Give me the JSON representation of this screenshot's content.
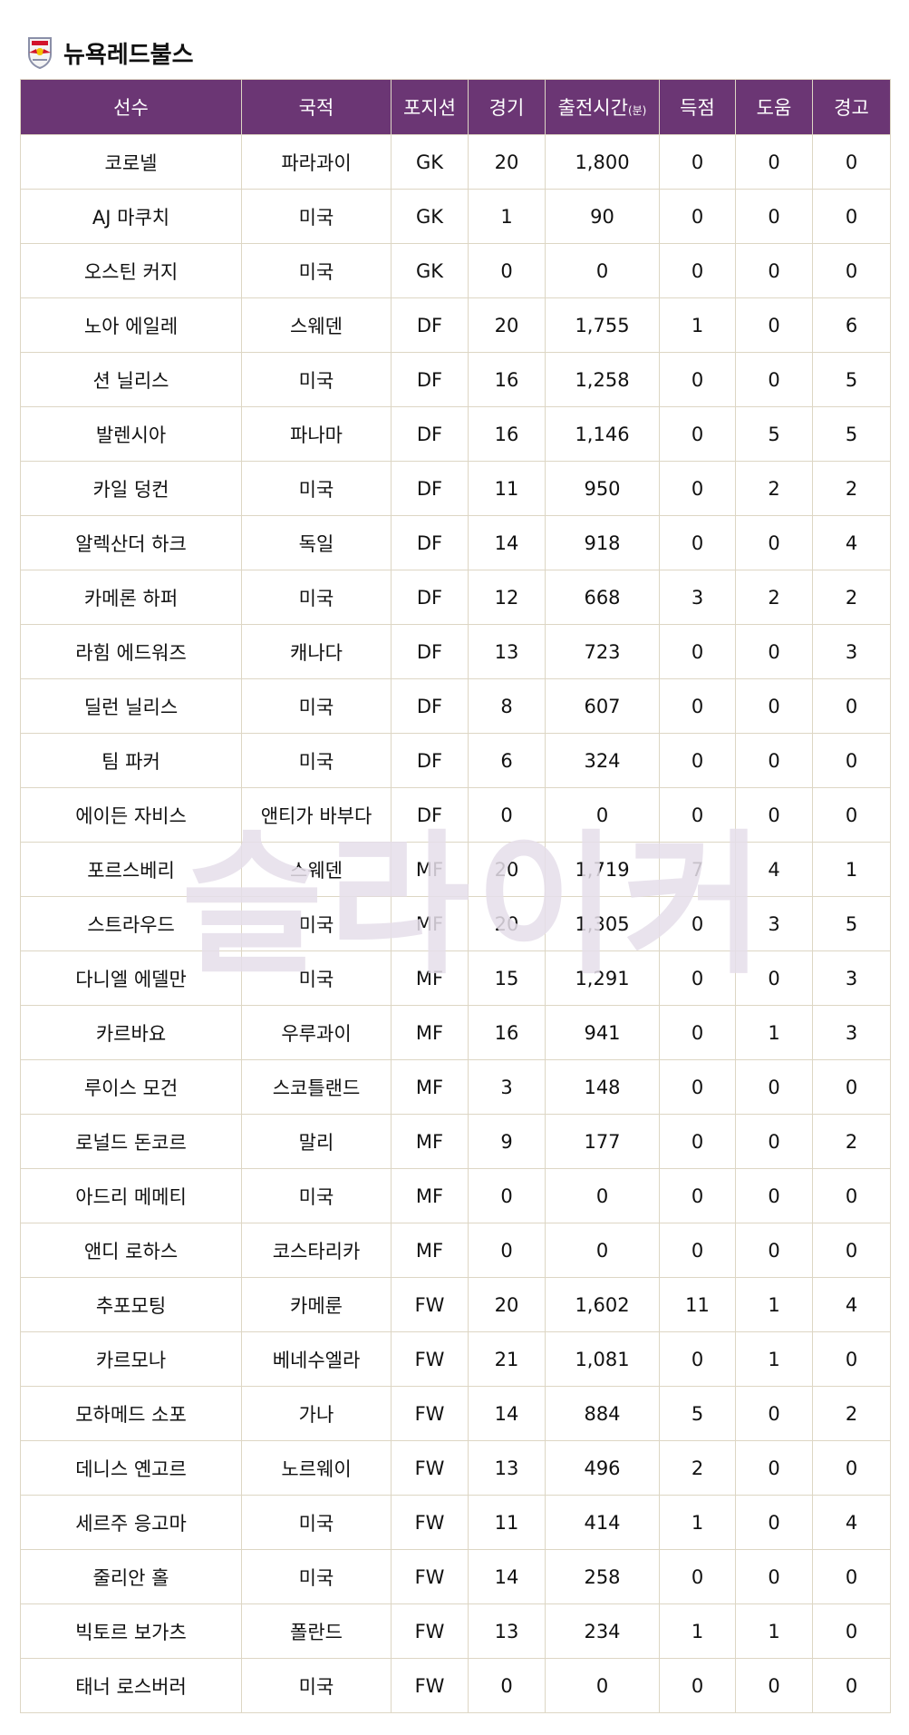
{
  "team": {
    "name": "뉴욕레드불스",
    "logo_icon": "red-bulls-crest-icon"
  },
  "colors": {
    "header_bg": "#6b3674",
    "border": "#ddd6c4",
    "watermark": "#e6dfea"
  },
  "watermark": "슬라이커",
  "columns": [
    "선수",
    "국적",
    "포지션",
    "경기",
    "출전시간",
    "득점",
    "도움",
    "경고"
  ],
  "minutes_unit": "(분)",
  "rows": [
    [
      "코로넬",
      "파라과이",
      "GK",
      "20",
      "1,800",
      "0",
      "0",
      "0"
    ],
    [
      "AJ 마쿠치",
      "미국",
      "GK",
      "1",
      "90",
      "0",
      "0",
      "0"
    ],
    [
      "오스틴 커지",
      "미국",
      "GK",
      "0",
      "0",
      "0",
      "0",
      "0"
    ],
    [
      "노아 에일레",
      "스웨덴",
      "DF",
      "20",
      "1,755",
      "1",
      "0",
      "6"
    ],
    [
      "션 닐리스",
      "미국",
      "DF",
      "16",
      "1,258",
      "0",
      "0",
      "5"
    ],
    [
      "발렌시아",
      "파나마",
      "DF",
      "16",
      "1,146",
      "0",
      "5",
      "5"
    ],
    [
      "카일 덩컨",
      "미국",
      "DF",
      "11",
      "950",
      "0",
      "2",
      "2"
    ],
    [
      "알렉산더 하크",
      "독일",
      "DF",
      "14",
      "918",
      "0",
      "0",
      "4"
    ],
    [
      "카메론 하퍼",
      "미국",
      "DF",
      "12",
      "668",
      "3",
      "2",
      "2"
    ],
    [
      "라힘 에드워즈",
      "캐나다",
      "DF",
      "13",
      "723",
      "0",
      "0",
      "3"
    ],
    [
      "딜런 닐리스",
      "미국",
      "DF",
      "8",
      "607",
      "0",
      "0",
      "0"
    ],
    [
      "팀 파커",
      "미국",
      "DF",
      "6",
      "324",
      "0",
      "0",
      "0"
    ],
    [
      "에이든 자비스",
      "앤티가 바부다",
      "DF",
      "0",
      "0",
      "0",
      "0",
      "0"
    ],
    [
      "포르스베리",
      "스웨덴",
      "MF",
      "20",
      "1,719",
      "7",
      "4",
      "1"
    ],
    [
      "스트라우드",
      "미국",
      "MF",
      "20",
      "1,305",
      "0",
      "3",
      "5"
    ],
    [
      "다니엘 에델만",
      "미국",
      "MF",
      "15",
      "1,291",
      "0",
      "0",
      "3"
    ],
    [
      "카르바요",
      "우루과이",
      "MF",
      "16",
      "941",
      "0",
      "1",
      "3"
    ],
    [
      "루이스 모건",
      "스코틀랜드",
      "MF",
      "3",
      "148",
      "0",
      "0",
      "0"
    ],
    [
      "로널드 돈코르",
      "말리",
      "MF",
      "9",
      "177",
      "0",
      "0",
      "2"
    ],
    [
      "아드리 메메티",
      "미국",
      "MF",
      "0",
      "0",
      "0",
      "0",
      "0"
    ],
    [
      "앤디 로하스",
      "코스타리카",
      "MF",
      "0",
      "0",
      "0",
      "0",
      "0"
    ],
    [
      "추포모팅",
      "카메룬",
      "FW",
      "20",
      "1,602",
      "11",
      "1",
      "4"
    ],
    [
      "카르모나",
      "베네수엘라",
      "FW",
      "21",
      "1,081",
      "0",
      "1",
      "0"
    ],
    [
      "모하메드 소포",
      "가나",
      "FW",
      "14",
      "884",
      "5",
      "0",
      "2"
    ],
    [
      "데니스 옌고르",
      "노르웨이",
      "FW",
      "13",
      "496",
      "2",
      "0",
      "0"
    ],
    [
      "세르주 응고마",
      "미국",
      "FW",
      "11",
      "414",
      "1",
      "0",
      "4"
    ],
    [
      "줄리안 홀",
      "미국",
      "FW",
      "14",
      "258",
      "0",
      "0",
      "0"
    ],
    [
      "빅토르 보가츠",
      "폴란드",
      "FW",
      "13",
      "234",
      "1",
      "1",
      "0"
    ],
    [
      "태너 로스버러",
      "미국",
      "FW",
      "0",
      "0",
      "0",
      "0",
      "0"
    ]
  ]
}
